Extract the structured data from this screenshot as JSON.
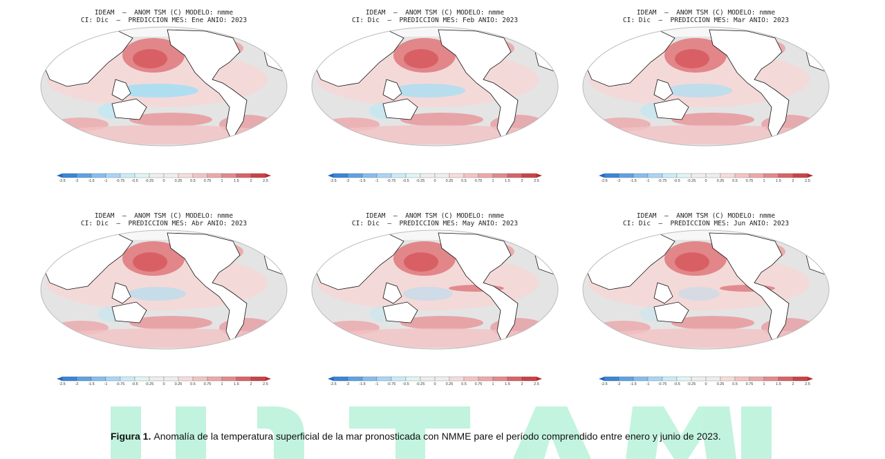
{
  "panels": [
    {
      "title_line1": "IDEAM  –  ANOM TSM (C) MODELO: nmme",
      "title_line2": "CI: Dic  –  PREDICCION MES: Ene ANIO: 2023",
      "colorbar_labels": [
        "-2.5",
        "-2",
        "-1.5",
        "-1",
        "-0.75",
        "-0.5",
        "-0.25",
        "0",
        "0.25",
        "0.5",
        "0.75",
        "1",
        "1.5",
        "2",
        "2.5"
      ]
    },
    {
      "title_line1": "IDEAM  –  ANOM TSM (C) MODELO: nmme",
      "title_line2": "CI: Dic  –  PREDICCION MES: Feb ANIO: 2023",
      "colorbar_labels": [
        "-2.5",
        "-2",
        "-1.5",
        "-1",
        "-0.75",
        "-0.5",
        "-0.25",
        "0",
        "0.25",
        "0.5",
        "0.75",
        "1",
        "1.5",
        "2",
        "2.5"
      ]
    },
    {
      "title_line1": "IDEAM  –  ANOM TSM (C) MODELO: nmme",
      "title_line2": "CI: Dic  –  PREDICCION MES: Mar ANIO: 2023",
      "colorbar_labels": [
        "-2.5",
        "-2",
        "-1.5",
        "-1",
        "-0.75",
        "-0.5",
        "-0.25",
        "0",
        "0.25",
        "0.5",
        "0.75",
        "1",
        "1.5",
        "2",
        "2.5"
      ]
    },
    {
      "title_line1": "IDEAM  –  ANOM TSM (C) MODELO: nmme",
      "title_line2": "CI: Dic  –  PREDICCION MES: Abr ANIO: 2023",
      "colorbar_labels": [
        "-2.5",
        "-2",
        "-1.5",
        "-1",
        "-0.75",
        "-0.5",
        "-0.25",
        "0",
        "0.25",
        "0.5",
        "0.75",
        "1",
        "1.5",
        "2",
        "2.5"
      ]
    },
    {
      "title_line1": "IDEAM  –  ANOM TSM (C) MODELO: nmme",
      "title_line2": "CI: Dic  –  PREDICCION MES: May ANIO: 2023",
      "colorbar_labels": [
        "-2.5",
        "-2",
        "-1.5",
        "-1",
        "-0.75",
        "-0.5",
        "-0.25",
        "0",
        "0.25",
        "0.5",
        "0.75",
        "1",
        "1.5",
        "2",
        "2.5"
      ]
    },
    {
      "title_line1": "IDEAM  –  ANOM TSM (C) MODELO: nmme",
      "title_line2": "CI: Dic  –  PREDICCION MES: Jun ANIO: 2023",
      "colorbar_labels": [
        "-2.5",
        "-2",
        "-1.5",
        "-1",
        "-0.75",
        "-0.5",
        "-0.25",
        "0",
        "0.25",
        "0.5",
        "0.75",
        "1",
        "1.5",
        "2",
        "2.5"
      ]
    }
  ],
  "caption": {
    "label": "Figura 1.",
    "text": "Anomalía de la temperatura superficial de la mar pronosticada con NMME pare el período comprendido entre enero y junio de 2023."
  }
}
